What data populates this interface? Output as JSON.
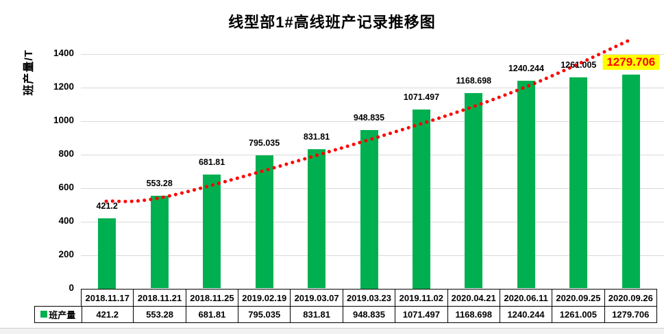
{
  "chart_data": {
    "type": "bar",
    "title": "线型部1#高线班产记录推移图",
    "ylabel": "班产量/T",
    "xlabel": "",
    "grid": true,
    "legend_position": "table-left-bottom",
    "ylim": [
      0,
      1400
    ],
    "ytick_step": 200,
    "bar_color": "#00B050",
    "gridline_color": "#D9D9D9",
    "categories": [
      "2018.11.17",
      "2018.11.21",
      "2018.11.25",
      "2019.02.19",
      "2019.03.07",
      "2019.03.23",
      "2019.11.02",
      "2020.04.21",
      "2020.06.11",
      "2020.09.25",
      "2020.09.26"
    ],
    "series": [
      {
        "name": "班产量",
        "values": [
          421.2,
          553.28,
          681.81,
          795.035,
          831.81,
          948.835,
          1071.497,
          1168.698,
          1240.244,
          1261.005,
          1279.706
        ],
        "labels": [
          "421.2",
          "553.28",
          "681.81",
          "795.035",
          "831.81",
          "948.835",
          "1071.497",
          "1168.698",
          "1240.244",
          "1261.005",
          "1279.706"
        ]
      }
    ],
    "highlight_last_label": {
      "background": "#FFFF00",
      "text_color": "#FF0000"
    },
    "trendline": {
      "style": "dotted",
      "color": "#FF0000",
      "points": [
        {
          "f": 0.044,
          "v": 521
        },
        {
          "f": 0.17,
          "v": 566
        },
        {
          "f": 0.548,
          "v": 939
        },
        {
          "f": 0.763,
          "v": 1192
        },
        {
          "f": 0.954,
          "v": 1487
        }
      ]
    },
    "data_table": {
      "row_header": "班产量",
      "shown": true
    }
  }
}
